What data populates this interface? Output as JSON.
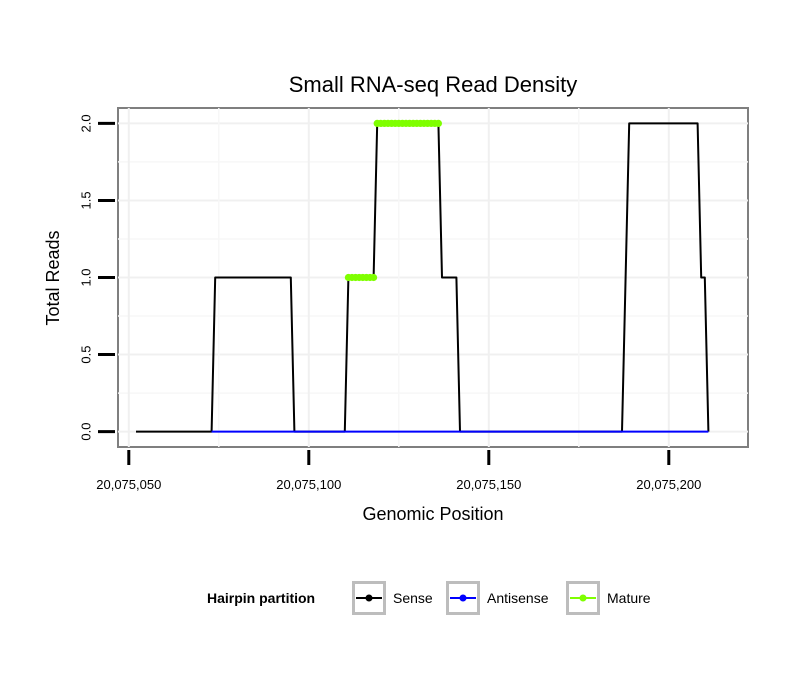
{
  "chart_data": {
    "type": "line",
    "title": "Small RNA-seq Read Density",
    "xlabel": "Genomic Position",
    "ylabel": "Total Reads",
    "xlim": [
      20075047,
      20075222
    ],
    "ylim": [
      -0.1,
      2.1
    ],
    "x_ticks": [
      20075050,
      20075100,
      20075150,
      20075200
    ],
    "x_tick_labels": [
      "20,075,050",
      "20,075,100",
      "20,075,150",
      "20,075,200"
    ],
    "y_ticks": [
      0,
      0.5,
      1,
      1.5,
      2
    ],
    "y_tick_labels": [
      "0.0",
      "0.5",
      "1.0",
      "1.5",
      "2.0"
    ],
    "grid": true,
    "legend_position": "bottom",
    "legend_title": "Hairpin partition",
    "series": [
      {
        "name": "Sense",
        "color": "#000000",
        "points": [
          [
            20075052,
            0
          ],
          [
            20075073,
            0
          ],
          [
            20075074,
            1
          ],
          [
            20075095,
            1
          ],
          [
            20075096,
            0
          ],
          [
            20075110,
            0
          ],
          [
            20075111,
            1
          ],
          [
            20075118,
            1
          ],
          [
            20075119,
            2
          ],
          [
            20075136,
            2
          ],
          [
            20075137,
            1
          ],
          [
            20075141,
            1
          ],
          [
            20075142,
            0
          ],
          [
            20075187,
            0
          ],
          [
            20075189,
            2
          ],
          [
            20075208,
            2
          ],
          [
            20075209,
            1
          ],
          [
            20075210,
            1
          ],
          [
            20075211,
            0
          ]
        ]
      },
      {
        "name": "Antisense",
        "color": "#0000ff",
        "points": [
          [
            20075073,
            0
          ],
          [
            20075142,
            0
          ],
          [
            20075187,
            0
          ],
          [
            20075211,
            0
          ]
        ]
      },
      {
        "name": "Mature",
        "color": "#7fff00",
        "points": [
          [
            20075111,
            1
          ],
          [
            20075112,
            1
          ],
          [
            20075113,
            1
          ],
          [
            20075114,
            1
          ],
          [
            20075115,
            1
          ],
          [
            20075116,
            1
          ],
          [
            20075117,
            1
          ],
          [
            20075118,
            1
          ],
          [
            20075119,
            2
          ],
          [
            20075120,
            2
          ],
          [
            20075121,
            2
          ],
          [
            20075122,
            2
          ],
          [
            20075123,
            2
          ],
          [
            20075124,
            2
          ],
          [
            20075125,
            2
          ],
          [
            20075126,
            2
          ],
          [
            20075127,
            2
          ],
          [
            20075128,
            2
          ],
          [
            20075129,
            2
          ],
          [
            20075130,
            2
          ],
          [
            20075131,
            2
          ],
          [
            20075132,
            2
          ],
          [
            20075133,
            2
          ],
          [
            20075134,
            2
          ],
          [
            20075135,
            2
          ],
          [
            20075136,
            2
          ]
        ]
      }
    ]
  }
}
